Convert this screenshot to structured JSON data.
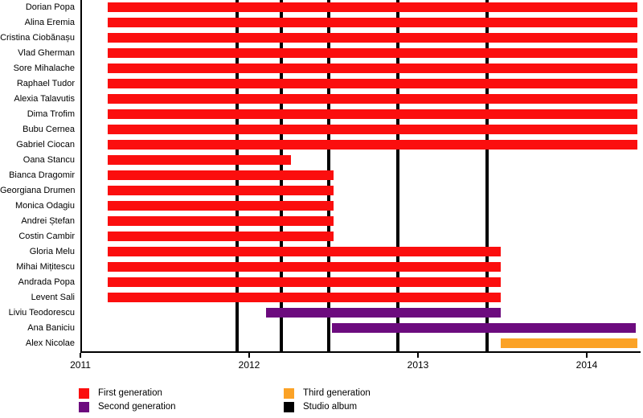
{
  "chart_data": {
    "type": "gantt-timeline",
    "title": "",
    "x_axis": {
      "tick_labels": [
        "2011",
        "2012",
        "2013",
        "2014"
      ],
      "tick_years": [
        2011,
        2012,
        2013,
        2014
      ],
      "range": [
        2011,
        2014.33
      ],
      "grid": false
    },
    "colors": {
      "first": "#FB0E0E",
      "second": "#6C0B7E",
      "third": "#FBA226",
      "album": "#000000"
    },
    "members": [
      {
        "name": "Dorian Popa",
        "generation": "first",
        "start": 2011.16,
        "end": 2014.3
      },
      {
        "name": "Alina Eremia",
        "generation": "first",
        "start": 2011.16,
        "end": 2014.3
      },
      {
        "name": "Cristina Ciobănașu",
        "generation": "first",
        "start": 2011.16,
        "end": 2014.3
      },
      {
        "name": "Vlad Gherman",
        "generation": "first",
        "start": 2011.16,
        "end": 2014.3
      },
      {
        "name": "Sore Mihalache",
        "generation": "first",
        "start": 2011.16,
        "end": 2014.3
      },
      {
        "name": "Raphael Tudor",
        "generation": "first",
        "start": 2011.16,
        "end": 2014.3
      },
      {
        "name": "Alexia Talavutis",
        "generation": "first",
        "start": 2011.16,
        "end": 2014.3
      },
      {
        "name": "Dima Trofim",
        "generation": "first",
        "start": 2011.16,
        "end": 2014.3
      },
      {
        "name": "Bubu Cernea",
        "generation": "first",
        "start": 2011.16,
        "end": 2014.3
      },
      {
        "name": "Gabriel Ciocan",
        "generation": "first",
        "start": 2011.16,
        "end": 2014.3
      },
      {
        "name": "Oana Stancu",
        "generation": "first",
        "start": 2011.16,
        "end": 2012.25
      },
      {
        "name": "Bianca Dragomir",
        "generation": "first",
        "start": 2011.16,
        "end": 2012.5
      },
      {
        "name": "Georgiana Drumen",
        "generation": "first",
        "start": 2011.16,
        "end": 2012.5
      },
      {
        "name": "Monica Odagiu",
        "generation": "first",
        "start": 2011.16,
        "end": 2012.5
      },
      {
        "name": "Andrei Ștefan",
        "generation": "first",
        "start": 2011.16,
        "end": 2012.5
      },
      {
        "name": "Costin Cambir",
        "generation": "first",
        "start": 2011.16,
        "end": 2012.5
      },
      {
        "name": "Gloria Melu",
        "generation": "first",
        "start": 2011.16,
        "end": 2013.49
      },
      {
        "name": "Mihai Mițitescu",
        "generation": "first",
        "start": 2011.16,
        "end": 2013.49
      },
      {
        "name": "Andrada Popa",
        "generation": "first",
        "start": 2011.16,
        "end": 2013.49
      },
      {
        "name": "Levent Sali",
        "generation": "first",
        "start": 2011.16,
        "end": 2013.49
      },
      {
        "name": "Liviu Teodorescu",
        "generation": "second",
        "start": 2012.1,
        "end": 2013.49
      },
      {
        "name": "Ana Baniciu",
        "generation": "second",
        "start": 2012.49,
        "end": 2014.29
      },
      {
        "name": "Alex Nicolae",
        "generation": "third",
        "start": 2013.49,
        "end": 2014.3
      }
    ],
    "album_lines": [
      2011.93,
      2012.19,
      2012.47,
      2012.88,
      2013.41
    ],
    "legend": [
      {
        "label": "First generation",
        "color_key": "first"
      },
      {
        "label": "Second generation",
        "color_key": "second"
      },
      {
        "label": "Third generation",
        "color_key": "third"
      },
      {
        "label": "Studio album",
        "color_key": "album"
      }
    ]
  }
}
